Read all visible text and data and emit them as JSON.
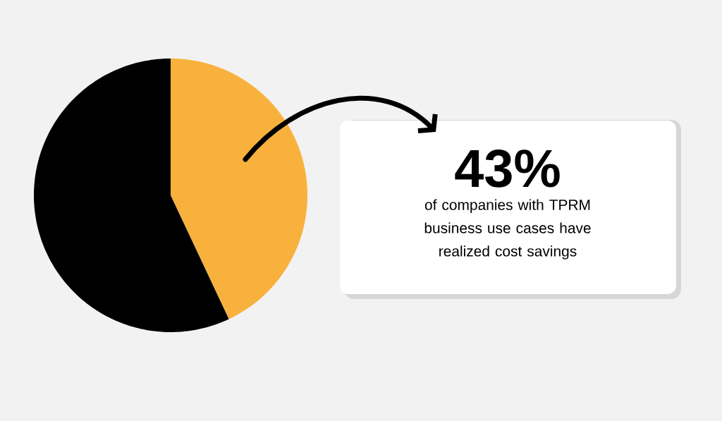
{
  "chart_data": {
    "type": "pie",
    "categories": [
      null,
      null
    ],
    "values": [
      43,
      57
    ],
    "colors": [
      "#f9b13d",
      "#000000"
    ],
    "annotations": [
      "43%",
      "of companies with TPRM business use cases have realized cost savings"
    ]
  }
}
